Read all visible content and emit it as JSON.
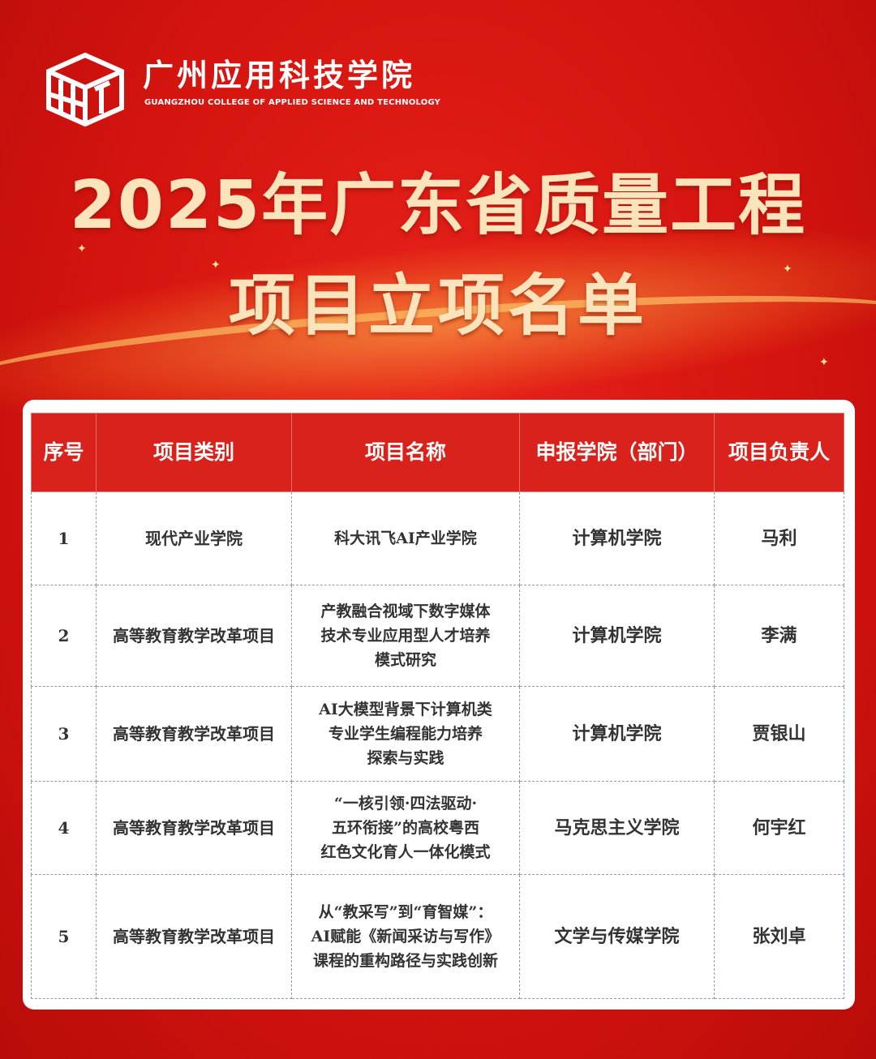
{
  "school": {
    "name_cn": "广州应用科技学院",
    "name_en": "GUANGZHOU COLLEGE OF APPLIED SCIENCE AND TECHNOLOGY"
  },
  "title": {
    "line1": "2025年广东省质量工程",
    "line2": "项目立项名单"
  },
  "table": {
    "headers": [
      "序号",
      "项目类别",
      "项目名称",
      "申报学院（部门）",
      "项目负责人"
    ],
    "rows": [
      {
        "no": "1",
        "category": "现代产业学院",
        "name": [
          "科大讯飞AI产业学院"
        ],
        "dept": "计算机学院",
        "lead": "马利"
      },
      {
        "no": "2",
        "category": "高等教育教学改革项目",
        "name": [
          "产教融合视域下数字媒体",
          "技术专业应用型人才培养",
          "模式研究"
        ],
        "dept": "计算机学院",
        "lead": "李满"
      },
      {
        "no": "3",
        "category": "高等教育教学改革项目",
        "name": [
          "AI大模型背景下计算机类",
          "专业学生编程能力培养",
          "探索与实践"
        ],
        "dept": "计算机学院",
        "lead": "贾银山"
      },
      {
        "no": "4",
        "category": "高等教育教学改革项目",
        "name": [
          "“一核引领·四法驱动·",
          "五环衔接”的高校粤西",
          "红色文化育人一体化模式"
        ],
        "dept": "马克思主义学院",
        "lead": "何宇红"
      },
      {
        "no": "5",
        "category": "高等教育教学改革项目",
        "name": [
          "从“教采写”到“育智媒”：",
          "AI赋能《新闻采访与写作》",
          "课程的重构路径与实践创新"
        ],
        "dept": "文学与传媒学院",
        "lead": "张刘卓"
      }
    ]
  },
  "colors": {
    "header_bg": "#d9221b",
    "background": "#d5140f",
    "title": "#fbe3bc"
  }
}
